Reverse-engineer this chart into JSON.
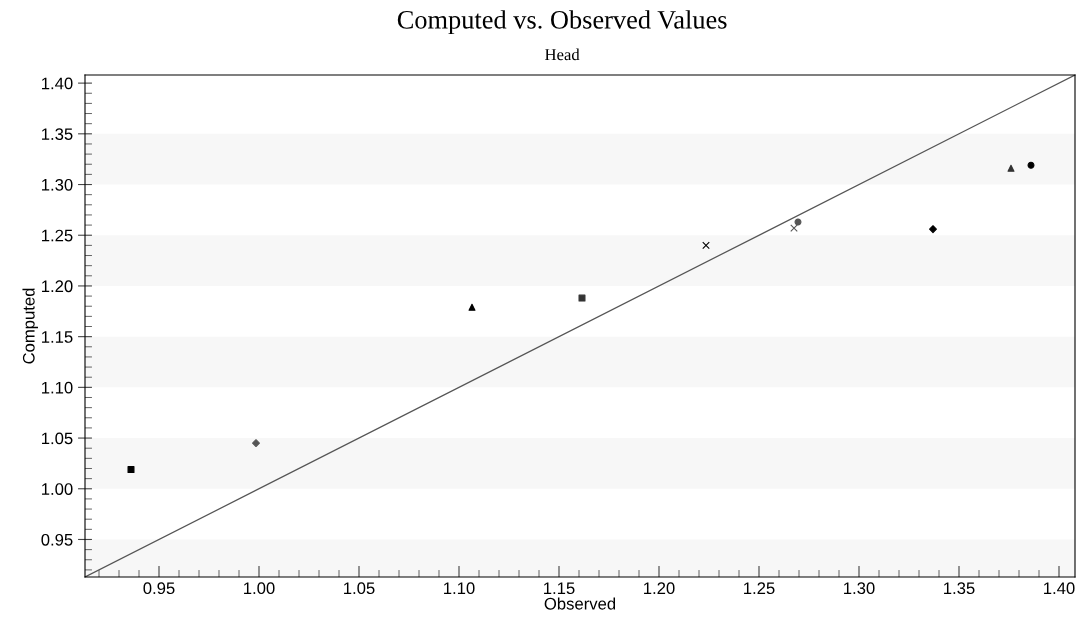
{
  "chart_data": {
    "type": "scatter",
    "title": "Computed vs. Observed Values",
    "subtitle": "Head",
    "xlabel": "Observed",
    "ylabel": "Computed",
    "xlim": [
      0.913,
      1.408
    ],
    "ylim": [
      0.913,
      1.408
    ],
    "xticks": [
      0.95,
      {
        "value": 1.0,
        "label": "1.00"
      },
      1.05,
      {
        "value": 1.1,
        "label": "1.10"
      },
      1.15,
      {
        "value": 1.2,
        "label": "1.20"
      },
      1.25,
      {
        "value": 1.3,
        "label": "1.30"
      },
      1.35,
      {
        "value": 1.4,
        "label": "1.40"
      }
    ],
    "yticks": [
      0.95,
      {
        "value": 1.0,
        "label": "1.00"
      },
      1.05,
      {
        "value": 1.1,
        "label": "1.10"
      },
      1.15,
      {
        "value": 1.2,
        "label": "1.20"
      },
      1.25,
      {
        "value": 1.3,
        "label": "1.30"
      },
      1.35,
      {
        "value": 1.4,
        "label": "1.40"
      }
    ],
    "legend": false,
    "bands": [
      {
        "axis": "y",
        "from": 0.913,
        "to": 0.95,
        "color": "#f7f7f7"
      },
      {
        "axis": "y",
        "from": 1.0,
        "to": 1.05,
        "color": "#f7f7f7"
      },
      {
        "axis": "y",
        "from": 1.1,
        "to": 1.15,
        "color": "#f7f7f7"
      },
      {
        "axis": "y",
        "from": 1.2,
        "to": 1.25,
        "color": "#f7f7f7"
      },
      {
        "axis": "y",
        "from": 1.3,
        "to": 1.35,
        "color": "#f7f7f7"
      }
    ],
    "series": [
      {
        "x": [
          0.936
        ],
        "values": [
          1.019
        ],
        "marker": "square",
        "color": "#000000"
      },
      {
        "x": [
          0.9985
        ],
        "values": [
          1.045
        ],
        "marker": "diamond",
        "color": "#555555"
      },
      {
        "x": [
          1.1065
        ],
        "values": [
          1.179
        ],
        "marker": "triangle",
        "color": "#000000"
      },
      {
        "x": [
          1.1615
        ],
        "values": [
          1.188
        ],
        "marker": "square",
        "color": "#333333"
      },
      {
        "x": [
          1.2235
        ],
        "values": [
          1.24
        ],
        "marker": "cross",
        "color": "#000000"
      },
      {
        "x": [
          1.2675
        ],
        "values": [
          1.257
        ],
        "marker": "cross",
        "color": "#555555"
      },
      {
        "x": [
          1.2695
        ],
        "values": [
          1.263
        ],
        "marker": "circle",
        "color": "#555555"
      },
      {
        "x": [
          1.337
        ],
        "values": [
          1.256
        ],
        "marker": "diamond",
        "color": "#000000"
      },
      {
        "x": [
          1.376
        ],
        "values": [
          1.316
        ],
        "marker": "triangle",
        "color": "#333333"
      },
      {
        "x": [
          1.386
        ],
        "values": [
          1.319
        ],
        "marker": "circle",
        "color": "#000000"
      },
      {
        "type": "line",
        "x": [
          0.913,
          1.408
        ],
        "values": [
          0.913,
          1.408
        ],
        "color": "#555555",
        "marker": "none"
      }
    ]
  }
}
